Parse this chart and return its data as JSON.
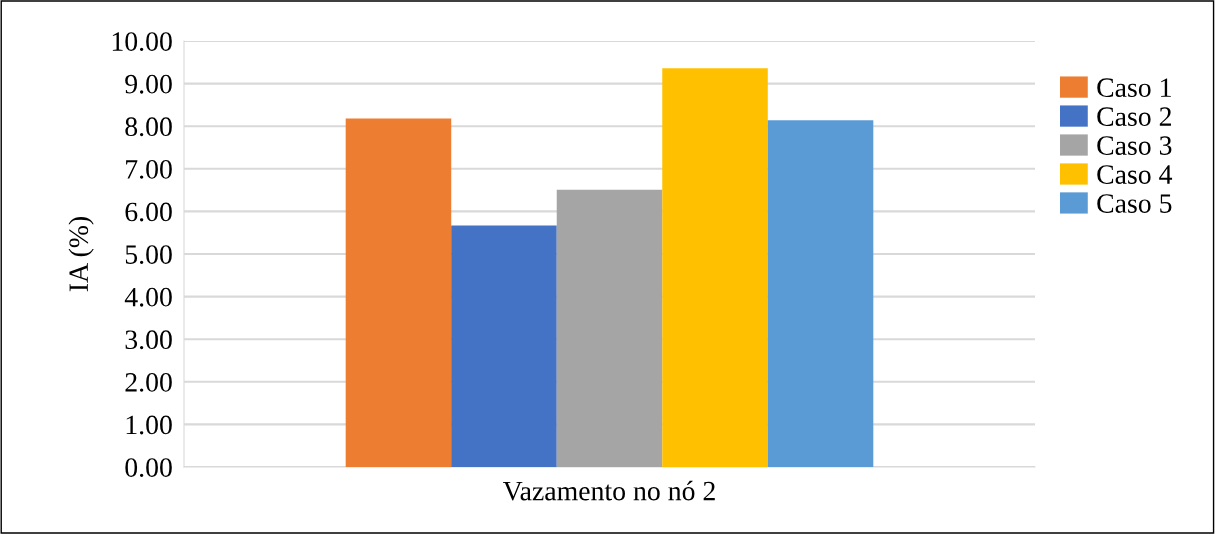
{
  "chart_data": {
    "type": "bar",
    "ylabel": "IA (%)",
    "categories": [
      "Vazamento no nó 2"
    ],
    "series": [
      {
        "name": "Caso 1",
        "color": "#ed7d31",
        "values": [
          8.18
        ]
      },
      {
        "name": "Caso 2",
        "color": "#4472c4",
        "values": [
          5.67
        ]
      },
      {
        "name": "Caso 3",
        "color": "#a5a5a5",
        "values": [
          6.51
        ]
      },
      {
        "name": "Caso 4",
        "color": "#ffc000",
        "values": [
          9.36
        ]
      },
      {
        "name": "Caso 5",
        "color": "#5b9bd5",
        "values": [
          8.14
        ]
      }
    ],
    "ylim": [
      0,
      10
    ],
    "yticks": [
      {
        "value": 0,
        "label": "0.00"
      },
      {
        "value": 1,
        "label": "1.00"
      },
      {
        "value": 2,
        "label": "2.00"
      },
      {
        "value": 3,
        "label": "3.00"
      },
      {
        "value": 4,
        "label": "4.00"
      },
      {
        "value": 5,
        "label": "5.00"
      },
      {
        "value": 6,
        "label": "6.00"
      },
      {
        "value": 7,
        "label": "7.00"
      },
      {
        "value": 8,
        "label": "8.00"
      },
      {
        "value": 9,
        "label": "9.00"
      },
      {
        "value": 10,
        "label": "10.00"
      }
    ],
    "grid": "y",
    "legend": "right"
  }
}
